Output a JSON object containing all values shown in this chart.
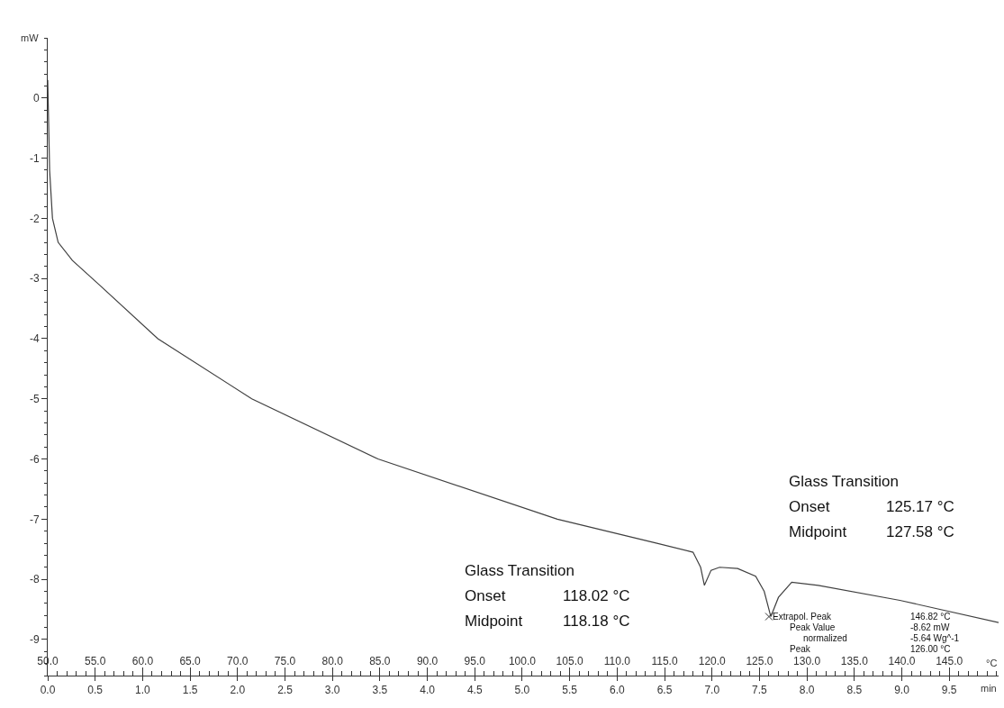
{
  "chart_data": {
    "type": "line",
    "xlabel": "°C",
    "x2label": "min",
    "ylabel": "mW",
    "x": [
      50.0,
      50.2,
      50.5,
      51.1,
      52.6,
      55.4,
      61.6,
      71.5,
      84.8,
      103.7,
      114.2,
      118.0,
      118.8,
      119.2,
      119.9,
      120.8,
      122.7,
      124.6,
      125.5,
      126.2,
      127.0,
      128.4,
      131.2,
      139.8,
      150.2
    ],
    "series": [
      {
        "color": "#404040",
        "values": [
          0.3,
          -1.2,
          -2.0,
          -2.4,
          -2.7,
          -3.1,
          -4.0,
          -5.0,
          -6.0,
          -7.0,
          -7.4,
          -7.55,
          -7.8,
          -8.1,
          -7.85,
          -7.8,
          -7.82,
          -7.95,
          -8.2,
          -8.62,
          -8.3,
          -8.05,
          -8.1,
          -8.35,
          -8.72
        ]
      }
    ],
    "xlim": [
      50,
      150.2
    ],
    "xticks": [
      {
        "value": 50,
        "label": "50.0"
      },
      {
        "value": 55,
        "label": "55.0"
      },
      {
        "value": 60,
        "label": "60.0"
      },
      {
        "value": 65,
        "label": "65.0"
      },
      {
        "value": 70,
        "label": "70.0"
      },
      {
        "value": 75,
        "label": "75.0"
      },
      {
        "value": 80,
        "label": "80.0"
      },
      {
        "value": 85,
        "label": "85.0"
      },
      {
        "value": 90,
        "label": "90.0"
      },
      {
        "value": 95,
        "label": "95.0"
      },
      {
        "value": 100,
        "label": "100.0"
      },
      {
        "value": 105,
        "label": "105.0"
      },
      {
        "value": 110,
        "label": "110.0"
      },
      {
        "value": 115,
        "label": "115.0"
      },
      {
        "value": 120,
        "label": "120.0"
      },
      {
        "value": 125,
        "label": "125.0"
      },
      {
        "value": 130,
        "label": "130.0"
      },
      {
        "value": 135,
        "label": "135.0"
      },
      {
        "value": 140,
        "label": "140.0"
      },
      {
        "value": 145,
        "label": "145.0"
      }
    ],
    "x2lim": [
      0,
      10.02
    ],
    "x2ticks": [
      {
        "value": 0,
        "label": "0.0"
      },
      {
        "value": 0.5,
        "label": "0.5"
      },
      {
        "value": 1,
        "label": "1.0"
      },
      {
        "value": 1.5,
        "label": "1.5"
      },
      {
        "value": 2,
        "label": "2.0"
      },
      {
        "value": 2.5,
        "label": "2.5"
      },
      {
        "value": 3,
        "label": "3.0"
      },
      {
        "value": 3.5,
        "label": "3.5"
      },
      {
        "value": 4,
        "label": "4.0"
      },
      {
        "value": 4.5,
        "label": "4.5"
      },
      {
        "value": 5,
        "label": "5.0"
      },
      {
        "value": 5.5,
        "label": "5.5"
      },
      {
        "value": 6,
        "label": "6.0"
      },
      {
        "value": 6.5,
        "label": "6.5"
      },
      {
        "value": 7,
        "label": "7.0"
      },
      {
        "value": 7.5,
        "label": "7.5"
      },
      {
        "value": 8,
        "label": "8.0"
      },
      {
        "value": 8.5,
        "label": "8.5"
      },
      {
        "value": 9,
        "label": "9.0"
      },
      {
        "value": 9.5,
        "label": "9.5"
      }
    ],
    "ylim": [
      -9.6,
      1.0
    ],
    "yticks": [
      0,
      -1,
      -2,
      -3,
      -4,
      -5,
      -6,
      -7,
      -8,
      -9
    ],
    "marker": "none",
    "line_style": "solid",
    "annotations": [
      "Glass Transition",
      "Onset",
      "118.02 °C",
      "Midpoint",
      "118.18 °C",
      "Glass Transition",
      "Onset",
      "125.17 °C",
      "Midpoint",
      "127.58 °C",
      {
        "text": "Extrapol. Peak",
        "x": 126.0,
        "y": -8.62
      },
      "146.82 °C",
      "Peak Value",
      "-8.62 mW",
      "normalized",
      "-5.64 Wg^-1",
      "Peak",
      "126.00 °C"
    ]
  }
}
